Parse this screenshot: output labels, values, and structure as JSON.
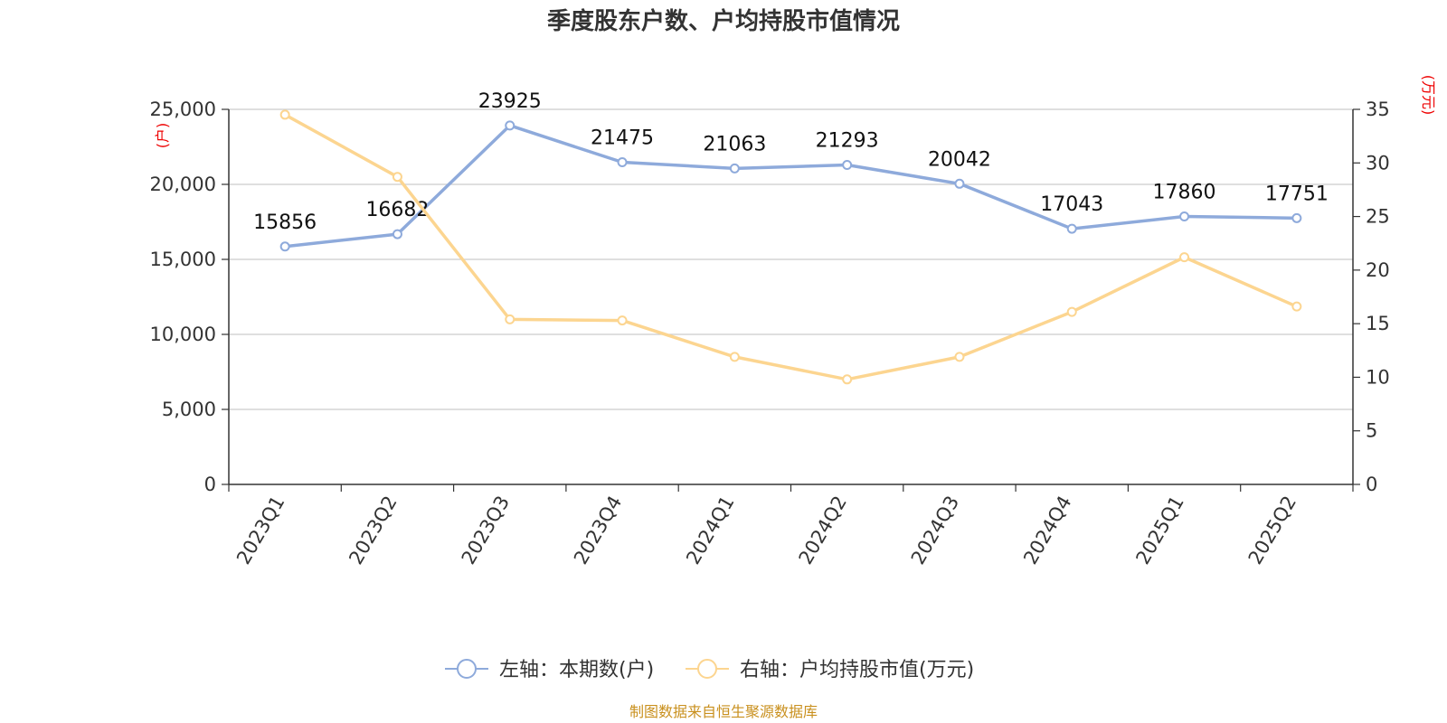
{
  "chart_data": {
    "type": "line",
    "title": "季度股东户数、户均持股市值情况",
    "categories": [
      "2023Q1",
      "2023Q2",
      "2023Q3",
      "2023Q4",
      "2024Q1",
      "2024Q2",
      "2024Q3",
      "2024Q4",
      "2025Q1",
      "2025Q2"
    ],
    "left_axis": {
      "unit": "(户)",
      "ylim": [
        0,
        25000
      ],
      "ticks": [
        "0",
        "5,000",
        "10,000",
        "15,000",
        "20,000",
        "25,000"
      ],
      "tick_values": [
        0,
        5000,
        10000,
        15000,
        20000,
        25000
      ]
    },
    "right_axis": {
      "unit": "(万元)",
      "ylim": [
        0,
        35
      ],
      "ticks": [
        "0",
        "5",
        "10",
        "15",
        "20",
        "25",
        "30",
        "35"
      ],
      "tick_values": [
        0,
        5,
        10,
        15,
        20,
        25,
        30,
        35
      ]
    },
    "series": [
      {
        "name": "左轴：本期数(户)",
        "axis": "left",
        "color": "#8eaadb",
        "values": [
          15856,
          16682,
          23925,
          21475,
          21063,
          21293,
          20042,
          17043,
          17860,
          17751
        ],
        "labels": [
          "15856",
          "16682",
          "23925",
          "21475",
          "21063",
          "21293",
          "20042",
          "17043",
          "17860",
          "17751"
        ]
      },
      {
        "name": "右轴：户均持股市值(万元)",
        "axis": "right",
        "color": "#fcd590",
        "values": [
          34.5,
          28.7,
          15.4,
          15.3,
          11.9,
          9.8,
          11.9,
          16.1,
          21.2,
          16.6
        ]
      }
    ],
    "grid": true,
    "legend_position": "bottom-center",
    "source": "制图数据来自恒生聚源数据库"
  }
}
